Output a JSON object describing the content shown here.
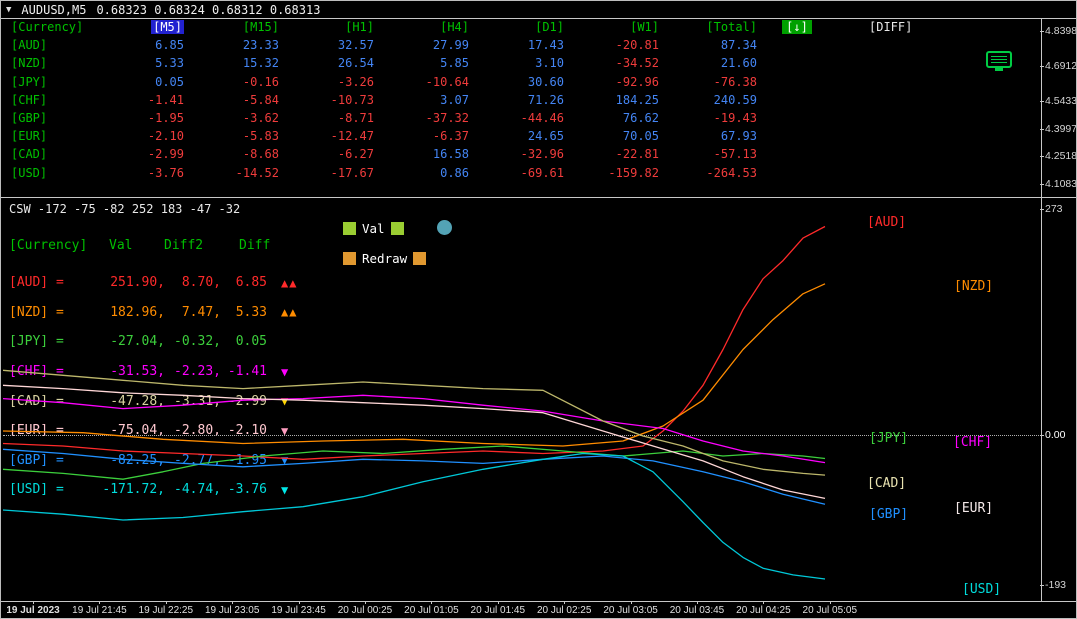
{
  "title_bar": {
    "dropdown": "▼",
    "symbol": "AUDUSD,M5",
    "quotes": "0.68323 0.68324 0.68312 0.68313"
  },
  "table": {
    "headers": [
      "[Currency]",
      "[M5]",
      "[M15]",
      "[H1]",
      "[H4]",
      "[D1]",
      "[W1]",
      "[Total]",
      "[↓]",
      "[DIFF]"
    ],
    "rows": [
      {
        "currency": "[AUD]",
        "values": [
          "6.85",
          "23.33",
          "32.57",
          "27.99",
          "17.43",
          "-20.81",
          "87.34"
        ]
      },
      {
        "currency": "[NZD]",
        "values": [
          "5.33",
          "15.32",
          "26.54",
          "5.85",
          "3.10",
          "-34.52",
          "21.60"
        ]
      },
      {
        "currency": "[JPY]",
        "values": [
          "0.05",
          "-0.16",
          "-3.26",
          "-10.64",
          "30.60",
          "-92.96",
          "-76.38"
        ]
      },
      {
        "currency": "[CHF]",
        "values": [
          "-1.41",
          "-5.84",
          "-10.73",
          "3.07",
          "71.26",
          "184.25",
          "240.59"
        ]
      },
      {
        "currency": "[GBP]",
        "values": [
          "-1.95",
          "-3.62",
          "-8.71",
          "-37.32",
          "-44.46",
          "76.62",
          "-19.43"
        ]
      },
      {
        "currency": "[EUR]",
        "values": [
          "-2.10",
          "-5.83",
          "-12.47",
          "-6.37",
          "24.65",
          "70.05",
          "67.93"
        ]
      },
      {
        "currency": "[CAD]",
        "values": [
          "-2.99",
          "-8.68",
          "-6.27",
          "16.58",
          "-32.96",
          "-22.81",
          "-57.13"
        ]
      },
      {
        "currency": "[USD]",
        "values": [
          "-3.76",
          "-14.52",
          "-17.67",
          "0.86",
          "-69.61",
          "-159.82",
          "-264.53"
        ]
      }
    ]
  },
  "right_axis_top": [
    "4.83984",
    "4.69124",
    "4.54334",
    "4.39979",
    "4.25189",
    "4.10834"
  ],
  "sub_axis": {
    "max": "273",
    "zero": "0.00",
    "min": "-193"
  },
  "csw_label": "CSW -172 -75 -82 252 183 -47 -32",
  "controls": {
    "val": "Val",
    "redraw": "Redraw"
  },
  "legend": {
    "headers": [
      "[Currency]",
      "Val",
      "Diff2",
      "Diff"
    ],
    "rows": [
      {
        "label": "[AUD] =",
        "val": "251.90,",
        "diff2": "8.70,",
        "diff": "6.85",
        "marker": "▲▲",
        "color": "#ff2a2a",
        "marker_color": "#ff2a2a"
      },
      {
        "label": "[NZD] =",
        "val": "182.96,",
        "diff2": "7.47,",
        "diff": "5.33",
        "marker": "▲▲",
        "color": "#ff8c00",
        "marker_color": "#ff8c00"
      },
      {
        "label": "[JPY] =",
        "val": "-27.04,",
        "diff2": "-0.32,",
        "diff": "0.05",
        "marker": "",
        "color": "#3ccf3c",
        "marker_color": "#3ccf3c"
      },
      {
        "label": "[CHF] =",
        "val": "-31.53,",
        "diff2": "-2.23,",
        "diff": "-1.41",
        "marker": "▼",
        "color": "#ff00ff",
        "marker_color": "#ff00ff"
      },
      {
        "label": "[CAD] =",
        "val": "-47.28,",
        "diff2": "-3.31,",
        "diff": "-2.99",
        "marker": "▼",
        "color": "#d8d2a0",
        "marker_color": "#ffd700"
      },
      {
        "label": "[EUR] =",
        "val": "-75.04,",
        "diff2": "-2.80,",
        "diff": "-2.10",
        "marker": "▼",
        "color": "#ffc8d0",
        "marker_color": "#ff9ec0"
      },
      {
        "label": "[GBP] =",
        "val": "-82.25,",
        "diff2": "-2.77,",
        "diff": "-1.95",
        "marker": "▼",
        "color": "#2090ff",
        "marker_color": "#2090ff"
      },
      {
        "label": "[USD] =",
        "val": "-171.72,",
        "diff2": "-4.74,",
        "diff": "-3.76",
        "marker": "▼",
        "color": "#00dcdc",
        "marker_color": "#00e8e8"
      }
    ]
  },
  "chart_labels": [
    {
      "name": "AUD",
      "text": "[AUD]",
      "color": "#ff2a2a"
    },
    {
      "name": "NZD",
      "text": "[NZD]",
      "color": "#ff8c00"
    },
    {
      "name": "JPY",
      "text": "[JPY]",
      "color": "#3ccf3c"
    },
    {
      "name": "CHF",
      "text": "[CHF]",
      "color": "#ff00ff"
    },
    {
      "name": "CAD",
      "text": "[CAD]",
      "color": "#e8e2b0"
    },
    {
      "name": "EUR",
      "text": "[EUR]",
      "color": "#f5eaea"
    },
    {
      "name": "GBP",
      "text": "[GBP]",
      "color": "#2090ff"
    },
    {
      "name": "USD",
      "text": "[USD]",
      "color": "#00dcdc"
    }
  ],
  "time_axis": [
    "19 Jul 2023",
    "19 Jul 21:45",
    "19 Jul 22:25",
    "19 Jul 23:05",
    "19 Jul 23:45",
    "20 Jul 00:25",
    "20 Jul 01:05",
    "20 Jul 01:45",
    "20 Jul 02:25",
    "20 Jul 03:05",
    "20 Jul 03:45",
    "20 Jul 04:25",
    "20 Jul 05:05"
  ],
  "chart_data": {
    "type": "line",
    "indicator": "CSW",
    "ylim": [
      -193,
      273
    ],
    "zero_level": 0,
    "series": [
      {
        "name": "AUD",
        "color": "#ff2a2a",
        "points": [
          [
            0,
            -9
          ],
          [
            60,
            -12
          ],
          [
            120,
            -18
          ],
          [
            180,
            -21
          ],
          [
            240,
            -24
          ],
          [
            300,
            -28
          ],
          [
            360,
            -24
          ],
          [
            420,
            -21
          ],
          [
            480,
            -18
          ],
          [
            540,
            -21
          ],
          [
            600,
            -18
          ],
          [
            640,
            -12
          ],
          [
            660,
            6
          ],
          [
            680,
            30
          ],
          [
            700,
            61
          ],
          [
            720,
            104
          ],
          [
            740,
            152
          ],
          [
            760,
            189
          ],
          [
            780,
            211
          ],
          [
            800,
            238
          ],
          [
            822,
            252
          ]
        ]
      },
      {
        "name": "NZD",
        "color": "#ff8c00",
        "points": [
          [
            0,
            6
          ],
          [
            80,
            4
          ],
          [
            160,
            -4
          ],
          [
            240,
            -9
          ],
          [
            320,
            -6
          ],
          [
            400,
            -4
          ],
          [
            480,
            -9
          ],
          [
            560,
            -12
          ],
          [
            620,
            -6
          ],
          [
            660,
            12
          ],
          [
            700,
            43
          ],
          [
            740,
            104
          ],
          [
            770,
            140
          ],
          [
            800,
            171
          ],
          [
            822,
            183
          ]
        ]
      },
      {
        "name": "JPY",
        "color": "#3ccf3c",
        "points": [
          [
            0,
            -40
          ],
          [
            60,
            -45
          ],
          [
            120,
            -52
          ],
          [
            160,
            -43
          ],
          [
            200,
            -33
          ],
          [
            260,
            -24
          ],
          [
            320,
            -18
          ],
          [
            380,
            -21
          ],
          [
            440,
            -16
          ],
          [
            500,
            -12
          ],
          [
            560,
            -18
          ],
          [
            620,
            -24
          ],
          [
            680,
            -18
          ],
          [
            720,
            -24
          ],
          [
            760,
            -21
          ],
          [
            800,
            -24
          ],
          [
            822,
            -27
          ]
        ]
      },
      {
        "name": "CHF",
        "color": "#ff00ff",
        "points": [
          [
            0,
            45
          ],
          [
            60,
            40
          ],
          [
            120,
            33
          ],
          [
            180,
            37
          ],
          [
            240,
            43
          ],
          [
            300,
            45
          ],
          [
            360,
            49
          ],
          [
            420,
            45
          ],
          [
            480,
            37
          ],
          [
            540,
            30
          ],
          [
            600,
            18
          ],
          [
            660,
            9
          ],
          [
            700,
            -6
          ],
          [
            740,
            -18
          ],
          [
            780,
            -24
          ],
          [
            822,
            -32
          ]
        ]
      },
      {
        "name": "CAD",
        "color": "#bdb76b",
        "points": [
          [
            0,
            79
          ],
          [
            60,
            73
          ],
          [
            120,
            67
          ],
          [
            180,
            61
          ],
          [
            240,
            57
          ],
          [
            300,
            61
          ],
          [
            360,
            65
          ],
          [
            420,
            61
          ],
          [
            480,
            57
          ],
          [
            540,
            55
          ],
          [
            600,
            18
          ],
          [
            640,
            0
          ],
          [
            680,
            -12
          ],
          [
            720,
            -30
          ],
          [
            760,
            -40
          ],
          [
            800,
            -45
          ],
          [
            822,
            -47
          ]
        ]
      },
      {
        "name": "EUR",
        "color": "#ffd7d7",
        "points": [
          [
            0,
            61
          ],
          [
            60,
            57
          ],
          [
            120,
            52
          ],
          [
            180,
            49
          ],
          [
            240,
            45
          ],
          [
            300,
            43
          ],
          [
            360,
            40
          ],
          [
            420,
            37
          ],
          [
            480,
            33
          ],
          [
            540,
            28
          ],
          [
            600,
            6
          ],
          [
            650,
            -12
          ],
          [
            700,
            -30
          ],
          [
            740,
            -49
          ],
          [
            780,
            -65
          ],
          [
            822,
            -75
          ]
        ]
      },
      {
        "name": "GBP",
        "color": "#2090ff",
        "points": [
          [
            0,
            -16
          ],
          [
            60,
            -21
          ],
          [
            120,
            -28
          ],
          [
            180,
            -33
          ],
          [
            240,
            -37
          ],
          [
            300,
            -33
          ],
          [
            360,
            -28
          ],
          [
            420,
            -30
          ],
          [
            480,
            -33
          ],
          [
            540,
            -28
          ],
          [
            600,
            -24
          ],
          [
            650,
            -30
          ],
          [
            700,
            -43
          ],
          [
            740,
            -55
          ],
          [
            780,
            -70
          ],
          [
            822,
            -82
          ]
        ]
      },
      {
        "name": "USD",
        "color": "#00c8d8",
        "points": [
          [
            0,
            -89
          ],
          [
            60,
            -94
          ],
          [
            120,
            -101
          ],
          [
            180,
            -98
          ],
          [
            240,
            -91
          ],
          [
            300,
            -85
          ],
          [
            360,
            -73
          ],
          [
            420,
            -55
          ],
          [
            480,
            -40
          ],
          [
            540,
            -28
          ],
          [
            580,
            -21
          ],
          [
            620,
            -24
          ],
          [
            650,
            -43
          ],
          [
            680,
            -79
          ],
          [
            700,
            -104
          ],
          [
            720,
            -128
          ],
          [
            740,
            -146
          ],
          [
            760,
            -159
          ],
          [
            790,
            -167
          ],
          [
            822,
            -172
          ]
        ]
      }
    ]
  }
}
